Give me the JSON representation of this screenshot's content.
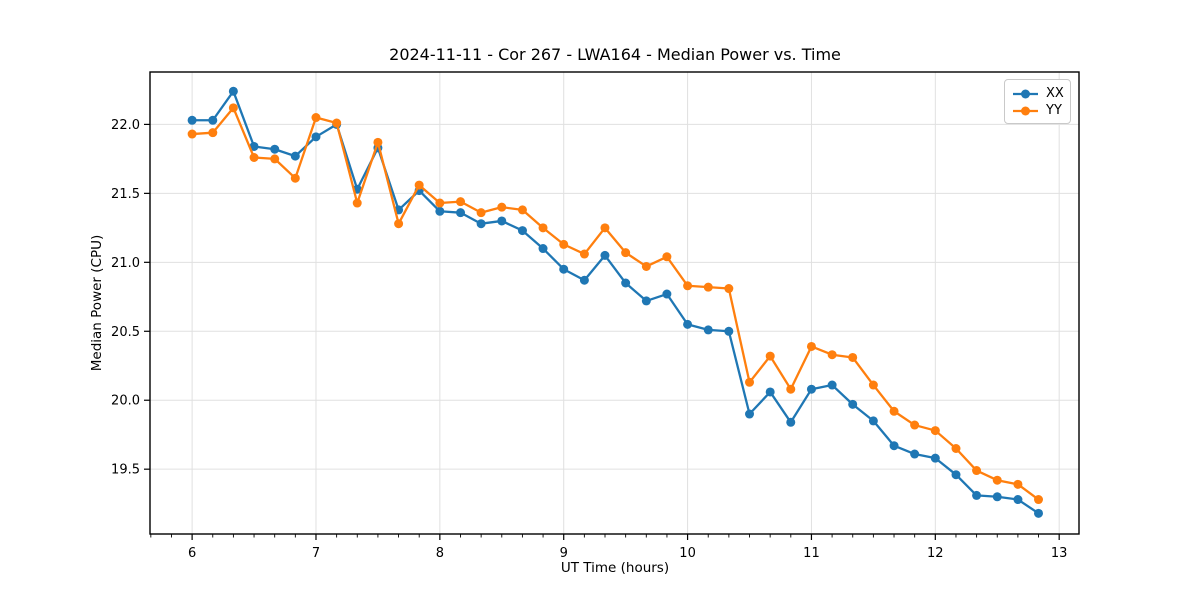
{
  "chart_data": {
    "type": "line",
    "title": "2024-11-11 - Cor 267 - LWA164 - Median Power vs. Time",
    "xlabel": "UT Time (hours)",
    "ylabel": "Median Power (CPU)",
    "xlim": [
      5.66,
      13.16
    ],
    "ylim": [
      19.03,
      22.38
    ],
    "xticks": [
      6,
      7,
      8,
      9,
      10,
      11,
      12,
      13
    ],
    "yticks": [
      19.5,
      20.0,
      20.5,
      21.0,
      21.5,
      22.0
    ],
    "x_minor_step": 0.1667,
    "grid": true,
    "background": "#ffffff",
    "grid_color": "#e0e0e0",
    "spine_color": "#000000",
    "legend": {
      "position": "upper right",
      "items": [
        "XX",
        "YY"
      ]
    },
    "x": [
      6.0,
      6.167,
      6.333,
      6.5,
      6.667,
      6.833,
      7.0,
      7.167,
      7.333,
      7.5,
      7.667,
      7.833,
      8.0,
      8.167,
      8.333,
      8.5,
      8.667,
      8.833,
      9.0,
      9.167,
      9.333,
      9.5,
      9.667,
      9.833,
      10.0,
      10.167,
      10.333,
      10.5,
      10.667,
      10.833,
      11.0,
      11.167,
      11.333,
      11.5,
      11.667,
      11.833,
      12.0,
      12.167,
      12.333,
      12.5,
      12.667,
      12.833
    ],
    "series": [
      {
        "name": "XX",
        "color": "#1f77b4",
        "values": [
          22.03,
          22.03,
          22.24,
          21.84,
          21.82,
          21.77,
          21.91,
          22.0,
          21.53,
          21.83,
          21.38,
          21.52,
          21.37,
          21.36,
          21.28,
          21.3,
          21.23,
          21.1,
          20.95,
          20.87,
          21.05,
          20.85,
          20.72,
          20.77,
          20.55,
          20.51,
          20.5,
          19.9,
          20.06,
          19.84,
          20.08,
          20.11,
          19.97,
          19.85,
          19.67,
          19.61,
          19.58,
          19.46,
          19.31,
          19.3,
          19.28,
          19.18
        ]
      },
      {
        "name": "YY",
        "color": "#ff7f0e",
        "values": [
          21.93,
          21.94,
          22.12,
          21.76,
          21.75,
          21.61,
          22.05,
          22.01,
          21.43,
          21.87,
          21.28,
          21.56,
          21.43,
          21.44,
          21.36,
          21.4,
          21.38,
          21.25,
          21.13,
          21.06,
          21.25,
          21.07,
          20.97,
          21.04,
          20.83,
          20.82,
          20.81,
          20.13,
          20.32,
          20.08,
          20.39,
          20.33,
          20.31,
          20.11,
          19.92,
          19.82,
          19.78,
          19.65,
          19.49,
          19.42,
          19.39,
          19.28
        ]
      }
    ]
  }
}
